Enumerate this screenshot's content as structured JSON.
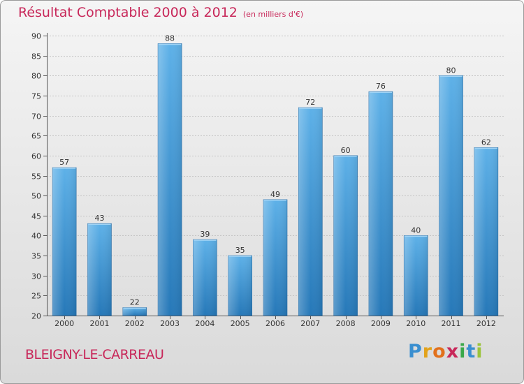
{
  "chart_data": {
    "type": "bar",
    "title": "Résultat Comptable 2000 à 2012",
    "subtitle": "(en milliers d'€)",
    "categories": [
      "2000",
      "2001",
      "2002",
      "2003",
      "2004",
      "2005",
      "2006",
      "2007",
      "2008",
      "2009",
      "2010",
      "2011",
      "2012"
    ],
    "values": [
      57,
      43,
      22,
      88,
      39,
      35,
      49,
      72,
      60,
      76,
      40,
      80,
      62
    ],
    "ylim": [
      20,
      90
    ],
    "yticks": [
      20,
      25,
      30,
      35,
      40,
      45,
      50,
      55,
      60,
      65,
      70,
      75,
      80,
      85,
      90
    ],
    "xlabel": "",
    "ylabel": "",
    "grid": true,
    "bar_color_top": "#5eb1e8",
    "bar_color_bottom": "#2678b8"
  },
  "footer": {
    "commune": "BLEIGNY-LE-CARREAU",
    "brand_letters": [
      "P",
      "r",
      "o",
      "x",
      "i",
      "t",
      "i"
    ],
    "brand_colors": [
      "#3a8fd0",
      "#e2a21b",
      "#e2701b",
      "#c8285a",
      "#3aa84a",
      "#3a8fd0",
      "#9bc43a"
    ]
  }
}
